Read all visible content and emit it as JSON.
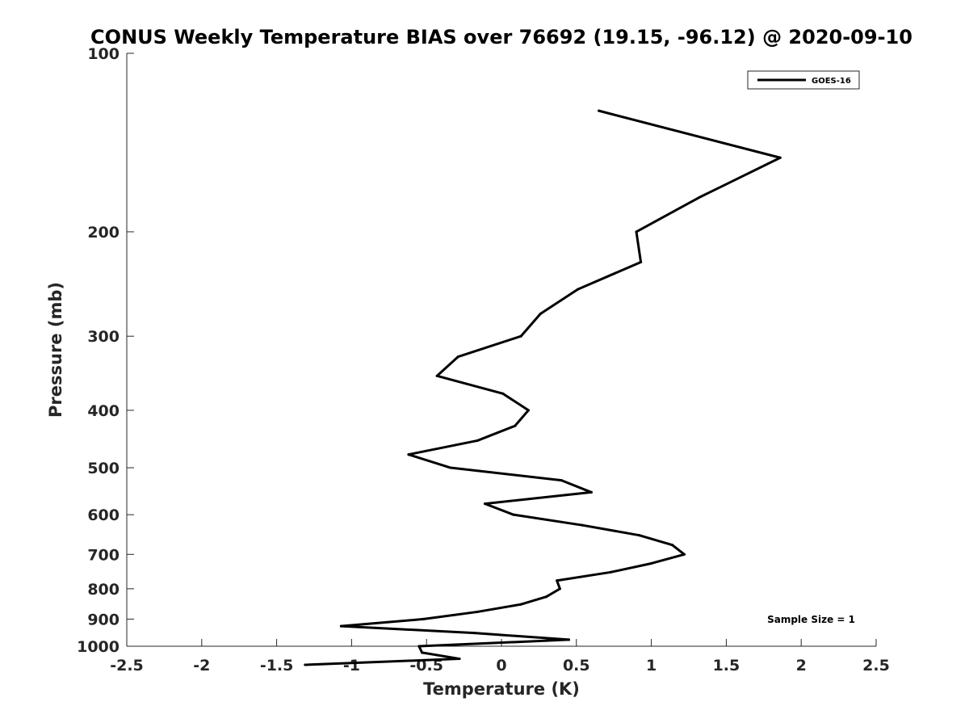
{
  "chart_data": {
    "type": "line",
    "title": "CONUS Weekly Temperature BIAS over 76692 (19.15, -96.12) @ 2020-09-10",
    "xlabel": "Temperature (K)",
    "ylabel": "Pressure (mb)",
    "xlim": [
      -2.5,
      2.5
    ],
    "ylim": [
      100,
      1000
    ],
    "y_scale": "log",
    "y_reversed": true,
    "xticks": [
      "-2.5",
      "-2",
      "-1.5",
      "-1",
      "-0.5",
      "0",
      "0.5",
      "1",
      "1.5",
      "2",
      "2.5"
    ],
    "xtick_values": [
      -2.5,
      -2,
      -1.5,
      -1,
      -0.5,
      0,
      0.5,
      1,
      1.5,
      2,
      2.5
    ],
    "yticks": [
      "100",
      "200",
      "300",
      "400",
      "500",
      "600",
      "700",
      "800",
      "900",
      "1000"
    ],
    "ytick_values": [
      100,
      200,
      300,
      400,
      500,
      600,
      700,
      800,
      900,
      1000
    ],
    "grid": false,
    "legend": {
      "position": "top-right"
    },
    "annotation": "Sample Size = 1",
    "series": [
      {
        "name": "GOES-16",
        "color": "#000000",
        "points": [
          {
            "x": 0.65,
            "y": 125
          },
          {
            "x": 1.86,
            "y": 150
          },
          {
            "x": 1.32,
            "y": 175
          },
          {
            "x": 0.9,
            "y": 200
          },
          {
            "x": 0.93,
            "y": 225
          },
          {
            "x": 0.51,
            "y": 250
          },
          {
            "x": 0.26,
            "y": 275
          },
          {
            "x": 0.13,
            "y": 300
          },
          {
            "x": -0.29,
            "y": 325
          },
          {
            "x": -0.43,
            "y": 350
          },
          {
            "x": 0.01,
            "y": 375
          },
          {
            "x": 0.18,
            "y": 400
          },
          {
            "x": 0.09,
            "y": 425
          },
          {
            "x": -0.16,
            "y": 450
          },
          {
            "x": -0.62,
            "y": 475
          },
          {
            "x": -0.34,
            "y": 500
          },
          {
            "x": 0.4,
            "y": 525
          },
          {
            "x": 0.6,
            "y": 550
          },
          {
            "x": -0.11,
            "y": 575
          },
          {
            "x": 0.08,
            "y": 600
          },
          {
            "x": 0.54,
            "y": 625
          },
          {
            "x": 0.92,
            "y": 650
          },
          {
            "x": 1.14,
            "y": 675
          },
          {
            "x": 1.22,
            "y": 700
          },
          {
            "x": 1.0,
            "y": 725
          },
          {
            "x": 0.73,
            "y": 750
          },
          {
            "x": 0.37,
            "y": 775
          },
          {
            "x": 0.39,
            "y": 800
          },
          {
            "x": 0.3,
            "y": 825
          },
          {
            "x": 0.13,
            "y": 850
          },
          {
            "x": -0.16,
            "y": 875
          },
          {
            "x": -0.52,
            "y": 900
          },
          {
            "x": -1.07,
            "y": 925
          },
          {
            "x": -0.18,
            "y": 950
          },
          {
            "x": 0.45,
            "y": 975
          },
          {
            "x": -0.55,
            "y": 1000
          },
          {
            "x": -0.53,
            "y": 1025
          },
          {
            "x": -0.28,
            "y": 1050
          },
          {
            "x": -1.31,
            "y": 1075
          }
        ]
      }
    ]
  }
}
